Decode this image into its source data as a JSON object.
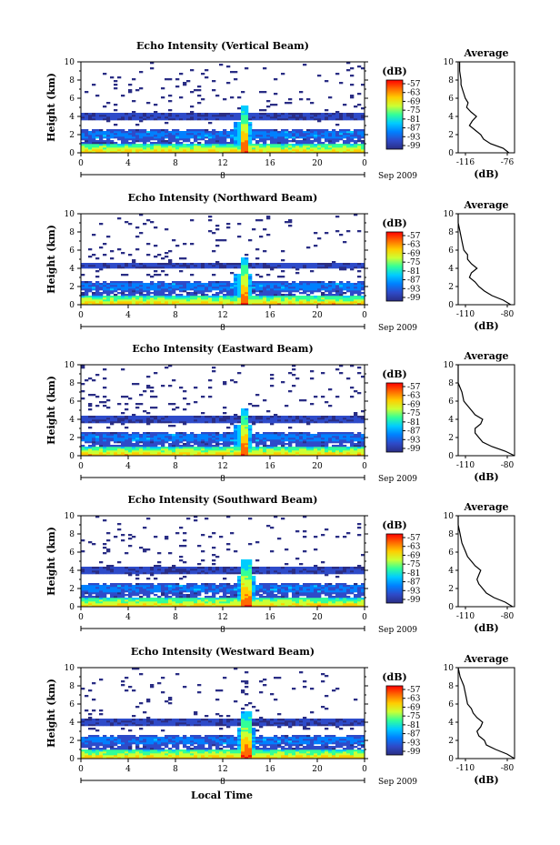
{
  "figure": {
    "xlabel": "Local Time",
    "colorbar_units": "(dB)",
    "colorbar_ticks": [
      "-57",
      "-63",
      "-69",
      "-75",
      "-81",
      "-87",
      "-93",
      "-99"
    ],
    "color_stops": [
      "#ff0000",
      "#ff6a00",
      "#ffcc00",
      "#ccff33",
      "#33ff99",
      "#00ccff",
      "#0080ff",
      "#2e4bc9",
      "#2a2d84"
    ],
    "date_label": "Sep 2009",
    "day_marker": "8",
    "profile_title": "Average",
    "profile_xlabel": "(dB)"
  },
  "chart_data": [
    {
      "type": "heatmap",
      "title": "Echo Intensity (Vertical Beam)",
      "xlabel": "Local Time",
      "ylabel": "Height (km)",
      "xlim": [
        0,
        24
      ],
      "ylim": [
        0,
        10
      ],
      "x_ticks": [
        "0",
        "4",
        "8",
        "12",
        "16",
        "20",
        "0"
      ],
      "y_ticks": [
        "0",
        "2",
        "4",
        "6",
        "8",
        "10"
      ],
      "clim": [
        -99,
        -57
      ],
      "layers_km": [
        0.8,
        2.0,
        4.0
      ],
      "convective_event_hour": 13.8,
      "profile": {
        "title": "Average",
        "xlabel": "(dB)",
        "x_ticks": [
          "-116",
          "-76"
        ],
        "xlim": [
          -116,
          -76
        ],
        "points": [
          [
            -80,
            0.0
          ],
          [
            -84,
            0.5
          ],
          [
            -93,
            1.0
          ],
          [
            -98,
            1.5
          ],
          [
            -100,
            2.0
          ],
          [
            -104,
            2.5
          ],
          [
            -108,
            3.0
          ],
          [
            -106,
            3.5
          ],
          [
            -103,
            4.0
          ],
          [
            -107,
            4.5
          ],
          [
            -110,
            5.0
          ],
          [
            -109,
            5.5
          ],
          [
            -111,
            6.0
          ],
          [
            -112,
            6.5
          ],
          [
            -113,
            7.0
          ],
          [
            -114,
            7.5
          ],
          [
            -114,
            8.0
          ],
          [
            -115,
            9.0
          ],
          [
            -115,
            10.0
          ]
        ]
      }
    },
    {
      "type": "heatmap",
      "title": "Echo Intensity (Northward Beam)",
      "xlabel": "Local Time",
      "ylabel": "Height (km)",
      "xlim": [
        0,
        24
      ],
      "ylim": [
        0,
        10
      ],
      "x_ticks": [
        "0",
        "4",
        "8",
        "12",
        "16",
        "20",
        "0"
      ],
      "y_ticks": [
        "0",
        "2",
        "4",
        "6",
        "8",
        "10"
      ],
      "clim": [
        -99,
        -57
      ],
      "layers_km": [
        0.8,
        2.0,
        4.3
      ],
      "convective_event_hour": 13.8,
      "profile": {
        "title": "Average",
        "xlabel": "(dB)",
        "x_ticks": [
          "-110",
          "-80"
        ],
        "xlim": [
          -110,
          -80
        ],
        "points": [
          [
            -82,
            0.0
          ],
          [
            -86,
            0.5
          ],
          [
            -92,
            1.0
          ],
          [
            -96,
            1.5
          ],
          [
            -99,
            2.0
          ],
          [
            -101,
            2.5
          ],
          [
            -104,
            3.0
          ],
          [
            -103,
            3.5
          ],
          [
            -100,
            4.0
          ],
          [
            -103,
            4.5
          ],
          [
            -105,
            5.0
          ],
          [
            -105,
            5.5
          ],
          [
            -107,
            6.0
          ],
          [
            -108,
            7.0
          ],
          [
            -109,
            8.0
          ],
          [
            -110,
            9.0
          ],
          [
            -110,
            10.0
          ]
        ]
      }
    },
    {
      "type": "heatmap",
      "title": "Echo Intensity (Eastward Beam)",
      "xlabel": "Local Time",
      "ylabel": "Height (km)",
      "xlim": [
        0,
        24
      ],
      "ylim": [
        0,
        10
      ],
      "x_ticks": [
        "0",
        "4",
        "8",
        "12",
        "16",
        "20",
        "0"
      ],
      "y_ticks": [
        "0",
        "2",
        "4",
        "6",
        "8",
        "10"
      ],
      "clim": [
        -99,
        -57
      ],
      "layers_km": [
        0.8,
        2.0,
        4.0
      ],
      "convective_event_hour": 13.8,
      "profile": {
        "title": "Average",
        "xlabel": "(dB)",
        "x_ticks": [
          "-110",
          "-80"
        ],
        "xlim": [
          -110,
          -80
        ],
        "points": [
          [
            -80,
            0.0
          ],
          [
            -85,
            0.5
          ],
          [
            -92,
            1.0
          ],
          [
            -97,
            1.5
          ],
          [
            -99,
            2.0
          ],
          [
            -101,
            2.5
          ],
          [
            -101,
            3.0
          ],
          [
            -98,
            3.5
          ],
          [
            -97,
            4.0
          ],
          [
            -101,
            4.5
          ],
          [
            -103,
            5.0
          ],
          [
            -105,
            5.5
          ],
          [
            -107,
            6.0
          ],
          [
            -108,
            7.0
          ],
          [
            -110,
            8.0
          ],
          [
            -110,
            9.0
          ],
          [
            -110,
            10.0
          ]
        ]
      }
    },
    {
      "type": "heatmap",
      "title": "Echo Intensity (Southward Beam)",
      "xlabel": "Local Time",
      "ylabel": "Height (km)",
      "xlim": [
        0,
        24
      ],
      "ylim": [
        0,
        10
      ],
      "x_ticks": [
        "0",
        "4",
        "8",
        "12",
        "16",
        "20",
        "0"
      ],
      "y_ticks": [
        "0",
        "2",
        "4",
        "6",
        "8",
        "10"
      ],
      "clim": [
        -99,
        -57
      ],
      "layers_km": [
        0.8,
        2.0,
        4.0
      ],
      "convective_event_hour": 14.0,
      "profile": {
        "title": "Average",
        "xlabel": "(dB)",
        "x_ticks": [
          "-110",
          "-80"
        ],
        "xlim": [
          -110,
          -80
        ],
        "points": [
          [
            -81,
            0.0
          ],
          [
            -85,
            0.5
          ],
          [
            -91,
            1.0
          ],
          [
            -95,
            1.5
          ],
          [
            -97,
            2.0
          ],
          [
            -99,
            2.5
          ],
          [
            -100,
            3.0
          ],
          [
            -99,
            3.5
          ],
          [
            -98,
            4.0
          ],
          [
            -101,
            4.5
          ],
          [
            -103,
            5.0
          ],
          [
            -105,
            5.5
          ],
          [
            -106,
            6.0
          ],
          [
            -108,
            7.0
          ],
          [
            -109,
            8.0
          ],
          [
            -110,
            9.0
          ],
          [
            -110,
            10.0
          ]
        ]
      }
    },
    {
      "type": "heatmap",
      "title": "Echo Intensity (Westward Beam)",
      "xlabel": "Local Time",
      "ylabel": "Height (km)",
      "xlim": [
        0,
        24
      ],
      "ylim": [
        0,
        10
      ],
      "x_ticks": [
        "0",
        "4",
        "8",
        "12",
        "16",
        "20",
        "0"
      ],
      "y_ticks": [
        "0",
        "2",
        "4",
        "6",
        "8",
        "10"
      ],
      "clim": [
        -99,
        -57
      ],
      "layers_km": [
        0.8,
        2.0,
        4.0
      ],
      "convective_event_hour": 14.0,
      "profile": {
        "title": "Average",
        "xlabel": "(dB)",
        "x_ticks": [
          "-110",
          "-80"
        ],
        "xlim": [
          -110,
          -80
        ],
        "points": [
          [
            -80,
            0.0
          ],
          [
            -84,
            0.5
          ],
          [
            -90,
            1.0
          ],
          [
            -95,
            1.5
          ],
          [
            -96,
            2.0
          ],
          [
            -99,
            2.5
          ],
          [
            -100,
            3.0
          ],
          [
            -98,
            3.5
          ],
          [
            -97,
            4.0
          ],
          [
            -100,
            4.5
          ],
          [
            -102,
            5.0
          ],
          [
            -103,
            5.5
          ],
          [
            -105,
            6.0
          ],
          [
            -106,
            7.0
          ],
          [
            -107,
            8.0
          ],
          [
            -109,
            9.0
          ],
          [
            -110,
            10.0
          ]
        ]
      }
    }
  ]
}
